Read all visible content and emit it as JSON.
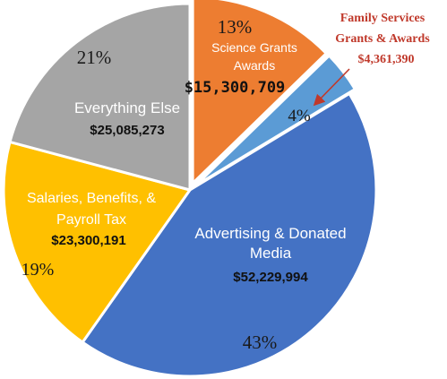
{
  "chart_data": {
    "type": "pie",
    "title": "",
    "slices": [
      {
        "label": "Science Grants Awards",
        "label_lines": [
          "Science Grants",
          "Awards"
        ],
        "value": 15300709,
        "value_text": "$15,300,709",
        "percent_text": "13%",
        "color": "#ED7D31"
      },
      {
        "label": "Family Services Grants & Awards",
        "label_lines": [
          "Family Services",
          "Grants & Awards"
        ],
        "value": 4361390,
        "value_text": "$4,361,390",
        "percent_text": "4%",
        "color": "#5B9BD5"
      },
      {
        "label": "Advertising & Donated Media",
        "label_lines": [
          "Advertising & Donated",
          "Media"
        ],
        "value": 52229994,
        "value_text": "$52,229,994",
        "percent_text": "43%",
        "color": "#4472C4"
      },
      {
        "label": "Salaries, Benefits, & Payroll Tax",
        "label_lines": [
          "Salaries, Benefits, &",
          "Payroll Tax"
        ],
        "value": 23300191,
        "value_text": "$23,300,191",
        "percent_text": "19%",
        "color": "#FFC000"
      },
      {
        "label": "Everything Else",
        "label_lines": [
          "Everything Else"
        ],
        "value": 25085273,
        "value_text": "$25,085,273",
        "percent_text": "21%",
        "color": "#A5A5A5"
      }
    ],
    "callout_color": "#C0392B",
    "legend": "none"
  }
}
